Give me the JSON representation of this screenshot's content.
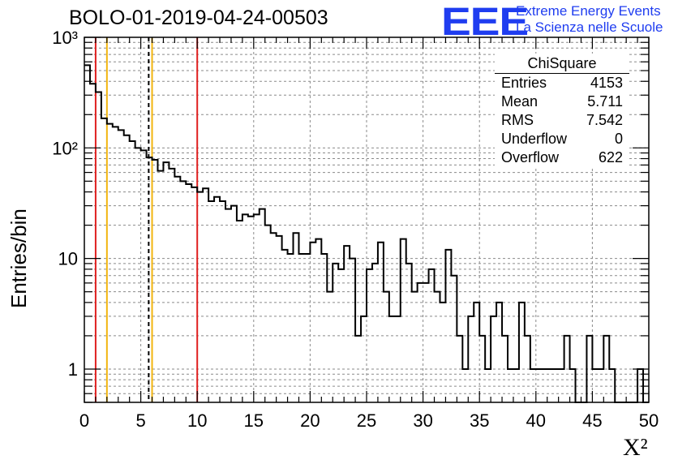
{
  "title": "BOLO-01-2019-04-24-00503",
  "logo": {
    "letters": "EEE",
    "line1": "Extreme Energy Events",
    "line2": "La Scienza nelle Scuole"
  },
  "stats_box": {
    "title": "ChiSquare",
    "rows": [
      {
        "label": "Entries",
        "value": "4153"
      },
      {
        "label": "Mean",
        "value": "5.711"
      },
      {
        "label": "RMS",
        "value": "7.542"
      },
      {
        "label": "Underflow",
        "value": "0"
      },
      {
        "label": "Overflow",
        "value": "622"
      }
    ]
  },
  "chart_data": {
    "type": "histogram",
    "xlabel": "X²",
    "ylabel": "Entries/bin",
    "xlim": [
      0,
      50
    ],
    "ylim": [
      0.5,
      1000
    ],
    "y_scale": "log",
    "bin_width": 0.5,
    "x_ticks": [
      0,
      5,
      10,
      15,
      20,
      25,
      30,
      35,
      40,
      45,
      50
    ],
    "y_ticks": [
      {
        "value": 1,
        "label": "1"
      },
      {
        "value": 10,
        "label": "10"
      },
      {
        "value": 100,
        "label": "10²"
      },
      {
        "value": 1000,
        "label": "10³"
      }
    ],
    "grid": true,
    "bin_contents": [
      560,
      380,
      320,
      185,
      165,
      155,
      145,
      130,
      115,
      100,
      95,
      82,
      78,
      62,
      74,
      65,
      55,
      50,
      47,
      44,
      40,
      43,
      33,
      36,
      33,
      28,
      30,
      22,
      25,
      24,
      25,
      28,
      20,
      17,
      16,
      12,
      11,
      17,
      11,
      11,
      14,
      15,
      11,
      5,
      9,
      8,
      13,
      10,
      2,
      3,
      8,
      9,
      14,
      5,
      3,
      3,
      15,
      9,
      5,
      6,
      6,
      8,
      5,
      4,
      12,
      7,
      2,
      1,
      3,
      4,
      2,
      1,
      3,
      4,
      2,
      1,
      1,
      4,
      2,
      1,
      1,
      1,
      1,
      1,
      1,
      2,
      1,
      0,
      0,
      2,
      1,
      1,
      2,
      1,
      0,
      0,
      0,
      0,
      1,
      0
    ],
    "vertical_lines": [
      {
        "x": 1.0,
        "color": "#e02020",
        "style": "solid"
      },
      {
        "x": 2.0,
        "color": "#f2b50f",
        "style": "solid"
      },
      {
        "x": 5.7,
        "color": "#000000",
        "style": "dashed"
      },
      {
        "x": 6.0,
        "color": "#f2b50f",
        "style": "solid"
      },
      {
        "x": 10.0,
        "color": "#e02020",
        "style": "solid"
      }
    ]
  }
}
